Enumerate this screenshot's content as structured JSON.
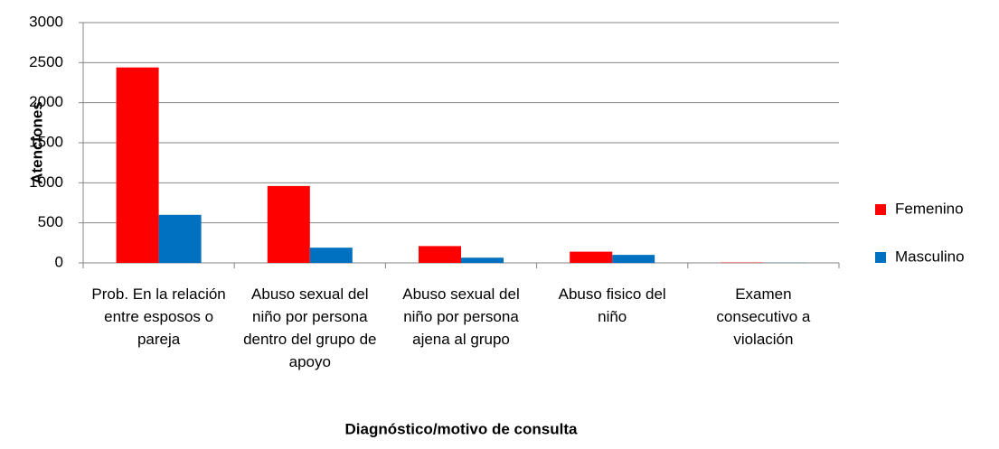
{
  "chart_data": {
    "type": "bar",
    "x_label": "Diagnóstico/motivo de consulta",
    "y_label": "Atenciones",
    "categories": [
      "Prob. En la relación entre esposos o pareja",
      "Abuso sexual del niño por persona dentro del grupo de apoyo",
      "Abuso sexual del niño por persona ajena al grupo",
      "Abuso fisico del niño",
      "Examen consecutivo a violación"
    ],
    "series": [
      {
        "name": "Femenino",
        "color": "#ff0000",
        "values": [
          2440,
          960,
          210,
          140,
          5
        ]
      },
      {
        "name": "Masculino",
        "color": "#0070c0",
        "values": [
          600,
          190,
          65,
          100,
          2
        ]
      }
    ],
    "ylim": [
      0,
      3000
    ],
    "yticks": [
      0,
      500,
      1000,
      1500,
      2000,
      2500,
      3000
    ],
    "grid": true,
    "legend": "right"
  }
}
